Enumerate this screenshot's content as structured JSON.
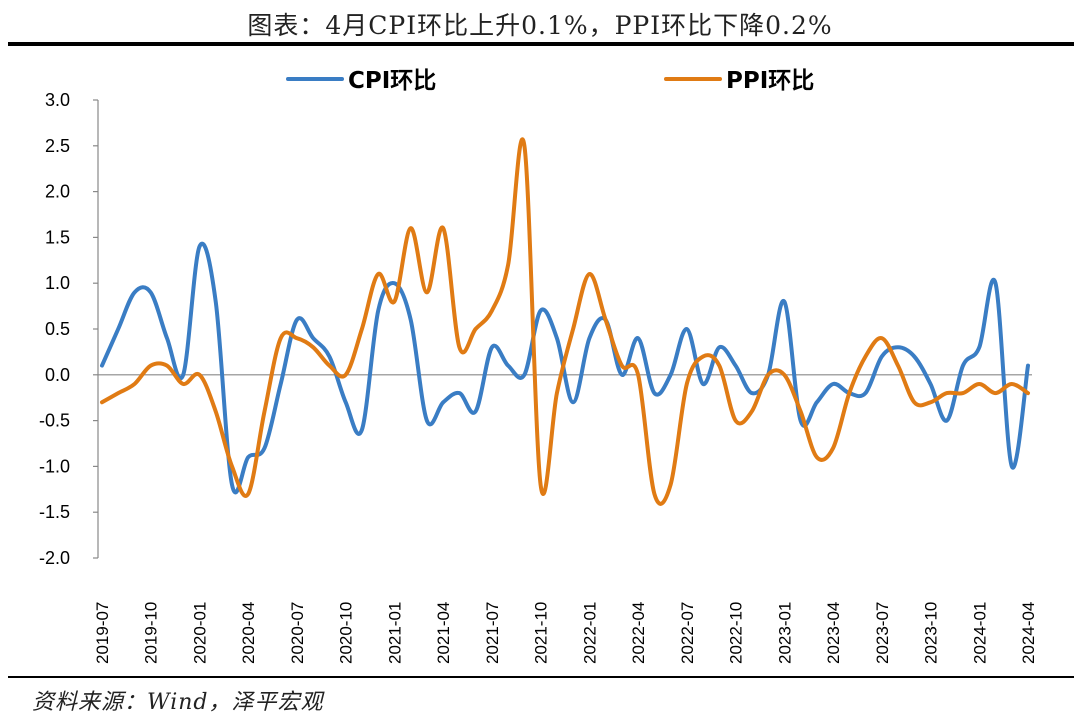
{
  "title": "图表：4月CPI环比上升0.1%，PPI环比下降0.2%",
  "source": "资料来源：Wind，泽平宏观",
  "chart_data": {
    "type": "line",
    "title": "",
    "xlabel": "",
    "ylabel": "",
    "ylim": [
      -2.0,
      3.0
    ],
    "y_ticks": [
      "3.0",
      "2.5",
      "2.0",
      "1.5",
      "1.0",
      "0.5",
      "0.0",
      "-0.5",
      "-1.0",
      "-1.5",
      "-2.0"
    ],
    "x_tick_labels": [
      "2019-07",
      "2019-10",
      "2020-01",
      "2020-04",
      "2020-07",
      "2020-10",
      "2021-01",
      "2021-04",
      "2021-07",
      "2021-10",
      "2022-01",
      "2022-04",
      "2022-07",
      "2022-10",
      "2023-01",
      "2023-04",
      "2023-07",
      "2023-10",
      "2024-01",
      "2024-04"
    ],
    "x": [
      "2019-07",
      "2019-08",
      "2019-09",
      "2019-10",
      "2019-11",
      "2019-12",
      "2020-01",
      "2020-02",
      "2020-03",
      "2020-04",
      "2020-05",
      "2020-06",
      "2020-07",
      "2020-08",
      "2020-09",
      "2020-10",
      "2020-11",
      "2020-12",
      "2021-01",
      "2021-02",
      "2021-03",
      "2021-04",
      "2021-05",
      "2021-06",
      "2021-07",
      "2021-08",
      "2021-09",
      "2021-10",
      "2021-11",
      "2021-12",
      "2022-01",
      "2022-02",
      "2022-03",
      "2022-04",
      "2022-05",
      "2022-06",
      "2022-07",
      "2022-08",
      "2022-09",
      "2022-10",
      "2022-11",
      "2022-12",
      "2023-01",
      "2023-02",
      "2023-03",
      "2023-04",
      "2023-05",
      "2023-06",
      "2023-07",
      "2023-08",
      "2023-09",
      "2023-10",
      "2023-11",
      "2023-12",
      "2024-01",
      "2024-02",
      "2024-03",
      "2024-04"
    ],
    "legend_position": "top",
    "grid": false,
    "series": [
      {
        "name": "CPI环比",
        "color": "#3a7dc4",
        "values": [
          0.1,
          0.5,
          0.9,
          0.9,
          0.4,
          0.0,
          1.4,
          0.8,
          -1.2,
          -0.9,
          -0.8,
          -0.1,
          0.6,
          0.4,
          0.2,
          -0.3,
          -0.6,
          0.7,
          1.0,
          0.6,
          -0.5,
          -0.3,
          -0.2,
          -0.4,
          0.3,
          0.1,
          0.0,
          0.7,
          0.4,
          -0.3,
          0.4,
          0.6,
          0.0,
          0.4,
          -0.2,
          0.0,
          0.5,
          -0.1,
          0.3,
          0.1,
          -0.2,
          0.0,
          0.8,
          -0.5,
          -0.3,
          -0.1,
          -0.2,
          -0.2,
          0.2,
          0.3,
          0.2,
          -0.1,
          -0.5,
          0.1,
          0.3,
          1.0,
          -1.0,
          0.1
        ]
      },
      {
        "name": "PPI环比",
        "color": "#e07b14",
        "values": [
          -0.3,
          -0.2,
          -0.1,
          0.1,
          0.1,
          -0.1,
          0.0,
          -0.4,
          -1.0,
          -1.3,
          -0.4,
          0.4,
          0.4,
          0.3,
          0.1,
          0.0,
          0.5,
          1.1,
          0.8,
          1.6,
          0.9,
          1.6,
          0.3,
          0.5,
          0.7,
          1.2,
          2.5,
          -1.2,
          -0.2,
          0.5,
          1.1,
          0.6,
          0.1,
          0.0,
          -1.3,
          -1.2,
          -0.1,
          0.2,
          0.1,
          -0.5,
          -0.4,
          0.0,
          0.0,
          -0.4,
          -0.9,
          -0.8,
          -0.2,
          0.2,
          0.4,
          0.1,
          -0.3,
          -0.3,
          -0.2,
          -0.2,
          -0.1,
          -0.2,
          -0.1,
          -0.2
        ]
      }
    ]
  }
}
